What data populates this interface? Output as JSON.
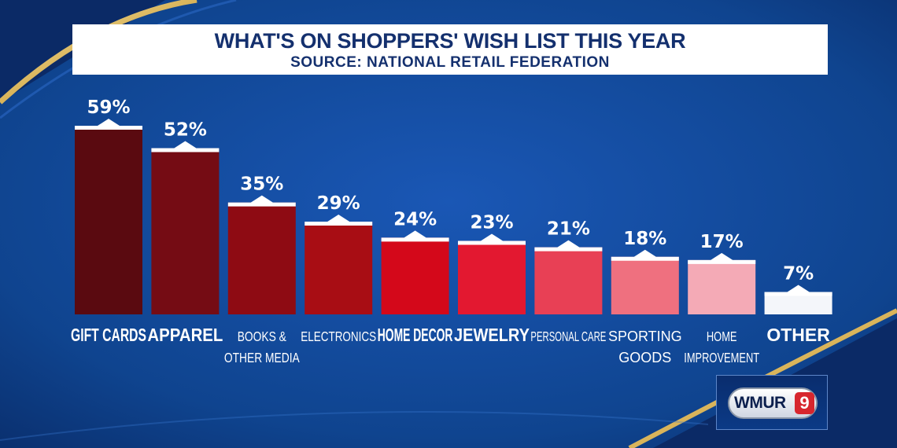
{
  "header": {
    "title": "WHAT'S ON SHOPPERS' WISH LIST THIS YEAR",
    "subtitle": "SOURCE: NATIONAL RETAIL FEDERATION"
  },
  "logo": {
    "text": "WMUR",
    "badge": "9"
  },
  "chart_data": {
    "type": "bar",
    "title": "WHAT'S ON SHOPPERS' WISH LIST THIS YEAR",
    "subtitle": "SOURCE: NATIONAL RETAIL FEDERATION",
    "categories": [
      [
        "GIFT CARDS"
      ],
      [
        "APPAREL"
      ],
      [
        "BOOKS &",
        "OTHER MEDIA"
      ],
      [
        "ELECTRONICS"
      ],
      [
        "HOME DECOR"
      ],
      [
        "JEWELRY"
      ],
      [
        "PERSONAL CARE"
      ],
      [
        "SPORTING",
        "GOODS"
      ],
      [
        "HOME",
        "IMPROVEMENT"
      ],
      [
        "OTHER"
      ]
    ],
    "values": [
      59,
      52,
      35,
      29,
      24,
      23,
      21,
      18,
      17,
      7
    ],
    "value_labels": [
      "59%",
      "52%",
      "35%",
      "29%",
      "24%",
      "23%",
      "21%",
      "18%",
      "17%",
      "7%"
    ],
    "colors": [
      "#5a0a10",
      "#750c14",
      "#8e0b13",
      "#a80d14",
      "#d4081a",
      "#e31830",
      "#e84055",
      "#ef707f",
      "#f4aab6",
      "#f4f6fa"
    ],
    "ylim": [
      0,
      59
    ],
    "grid": false,
    "legend": false
  }
}
